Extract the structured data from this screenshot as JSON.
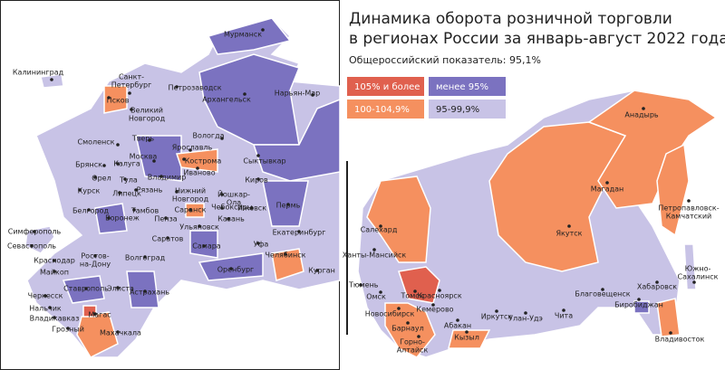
{
  "header": {
    "title_line1": "Динамика оборота розничной торговли",
    "title_line2": "в регионах России за январь-август 2022 года",
    "subtitle": "Общероссийский показатель: 95,1%"
  },
  "legend": [
    {
      "label": "105% и более",
      "color": "#e0604e"
    },
    {
      "label": "менее 95%",
      "color": "#7b72c0"
    },
    {
      "label": "100-104,9%",
      "color": "#f5905f"
    },
    {
      "label": "95-99,9%",
      "color": "#c8c3e6"
    }
  ],
  "cities": [
    {
      "name": "Мурманск"
    },
    {
      "name": "Калининград"
    },
    {
      "lines": [
        "Санкт-",
        "Петербург"
      ]
    },
    {
      "name": "Петрозаводск"
    },
    {
      "name": "Архангельск"
    },
    {
      "name": "Нарьян-Мар"
    },
    {
      "name": "Псков"
    },
    {
      "lines": [
        "Великий",
        "Новгород"
      ]
    },
    {
      "name": "Вологда"
    },
    {
      "name": "Смоленск"
    },
    {
      "name": "Тверь"
    },
    {
      "name": "Ярославль"
    },
    {
      "name": "Москва"
    },
    {
      "name": "Кострома"
    },
    {
      "name": "Сыктывкар"
    },
    {
      "name": "Брянск"
    },
    {
      "name": "Калуга"
    },
    {
      "name": "Иваново"
    },
    {
      "name": "Владимир"
    },
    {
      "name": "Орел"
    },
    {
      "name": "Тула"
    },
    {
      "name": "Рязань"
    },
    {
      "name": "Курск"
    },
    {
      "name": "Липецк"
    },
    {
      "lines": [
        "Нижний",
        "Новгород"
      ]
    },
    {
      "name": "Киров"
    },
    {
      "lines": [
        "Йошкар-",
        "Ола"
      ]
    },
    {
      "name": "Чебоксары"
    },
    {
      "name": "Ижевск"
    },
    {
      "name": "Казань"
    },
    {
      "name": "Белгород"
    },
    {
      "name": "Тамбов"
    },
    {
      "name": "Саранск"
    },
    {
      "name": "Воронеж"
    },
    {
      "name": "Пенза"
    },
    {
      "name": "Ульяновск"
    },
    {
      "name": "Пермь"
    },
    {
      "name": "Екатеринбург"
    },
    {
      "name": "Симферополь"
    },
    {
      "name": "Саратов"
    },
    {
      "name": "Самара"
    },
    {
      "name": "Уфа"
    },
    {
      "name": "Севастополь"
    },
    {
      "lines": [
        "Ростов-",
        "на-Дону"
      ]
    },
    {
      "name": "Волгоград"
    },
    {
      "name": "Челябинск"
    },
    {
      "name": "Краснодар"
    },
    {
      "name": "Майкоп"
    },
    {
      "name": "Оренбург"
    },
    {
      "name": "Курган"
    },
    {
      "name": "Ставрополь"
    },
    {
      "name": "Элиста"
    },
    {
      "name": "Черкесск"
    },
    {
      "name": "Нальчик"
    },
    {
      "name": "Астрахань"
    },
    {
      "name": "Магас"
    },
    {
      "name": "Владикавказ"
    },
    {
      "name": "Грозный"
    },
    {
      "name": "Махачкала"
    },
    {
      "name": "Анадырь"
    },
    {
      "name": "Салехард"
    },
    {
      "name": "Магадан"
    },
    {
      "name": "Якутск"
    },
    {
      "lines": [
        "Петропавловск-",
        "Камчатский"
      ]
    },
    {
      "name": "Ханты-Мансийск"
    },
    {
      "name": "Тюмень"
    },
    {
      "name": "Томск"
    },
    {
      "name": "Красноярск"
    },
    {
      "name": "Хабаровск"
    },
    {
      "lines": [
        "Южно-",
        "Сахалинск"
      ]
    },
    {
      "name": "Благовещенск"
    },
    {
      "name": "Омск"
    },
    {
      "name": "Новосибирск"
    },
    {
      "name": "Кемерово"
    },
    {
      "name": "Иркутск"
    },
    {
      "name": "Улан-Удэ"
    },
    {
      "name": "Чита"
    },
    {
      "name": "Биробиджан"
    },
    {
      "name": "Барнаул"
    },
    {
      "name": "Абакан"
    },
    {
      "lines": [
        "Горно-",
        "Алтайск"
      ]
    },
    {
      "name": "Кызыл"
    },
    {
      "name": "Владивосток"
    }
  ]
}
